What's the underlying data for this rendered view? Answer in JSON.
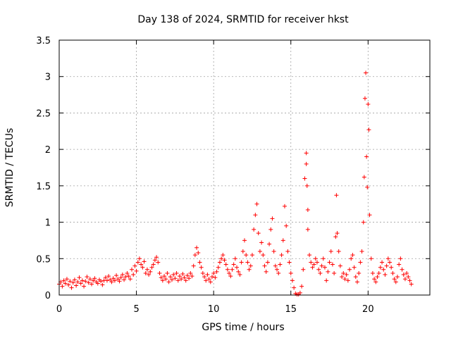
{
  "chart_data": {
    "type": "scatter",
    "title": "Day 138 of 2024, SRMTID for receiver hkst",
    "xlabel": "GPS time / hours",
    "ylabel": "SRMTID / TECUs",
    "xlim": [
      0,
      24
    ],
    "ylim": [
      0,
      3.5
    ],
    "xticks": [
      0,
      5,
      10,
      15,
      20
    ],
    "yticks": [
      0,
      0.5,
      1,
      1.5,
      2,
      2.5,
      3,
      3.5
    ],
    "xtick_labels": [
      "0",
      "5",
      "10",
      "15",
      "20"
    ],
    "ytick_labels": [
      "0",
      "0.5",
      "1",
      "1.5",
      "2",
      "2.5",
      "3",
      "3.5"
    ],
    "grid": true,
    "marker": "plus",
    "color": "#ff0000",
    "series": [
      {
        "name": "SRMTID",
        "points": [
          [
            0.0,
            0.15
          ],
          [
            0.1,
            0.18
          ],
          [
            0.2,
            0.12
          ],
          [
            0.3,
            0.2
          ],
          [
            0.4,
            0.16
          ],
          [
            0.5,
            0.22
          ],
          [
            0.6,
            0.14
          ],
          [
            0.7,
            0.19
          ],
          [
            0.8,
            0.1
          ],
          [
            0.9,
            0.17
          ],
          [
            1.0,
            0.21
          ],
          [
            1.1,
            0.13
          ],
          [
            1.2,
            0.18
          ],
          [
            1.3,
            0.24
          ],
          [
            1.4,
            0.16
          ],
          [
            1.5,
            0.2
          ],
          [
            1.6,
            0.12
          ],
          [
            1.7,
            0.19
          ],
          [
            1.8,
            0.25
          ],
          [
            1.9,
            0.17
          ],
          [
            2.0,
            0.22
          ],
          [
            2.1,
            0.15
          ],
          [
            2.2,
            0.2
          ],
          [
            2.3,
            0.23
          ],
          [
            2.4,
            0.18
          ],
          [
            2.5,
            0.16
          ],
          [
            2.6,
            0.21
          ],
          [
            2.7,
            0.19
          ],
          [
            2.8,
            0.14
          ],
          [
            2.9,
            0.2
          ],
          [
            3.0,
            0.24
          ],
          [
            3.1,
            0.2
          ],
          [
            3.2,
            0.26
          ],
          [
            3.3,
            0.21
          ],
          [
            3.4,
            0.18
          ],
          [
            3.5,
            0.23
          ],
          [
            3.6,
            0.2
          ],
          [
            3.7,
            0.27
          ],
          [
            3.8,
            0.22
          ],
          [
            3.9,
            0.19
          ],
          [
            4.0,
            0.24
          ],
          [
            4.1,
            0.28
          ],
          [
            4.2,
            0.21
          ],
          [
            4.3,
            0.25
          ],
          [
            4.4,
            0.3
          ],
          [
            4.5,
            0.26
          ],
          [
            4.6,
            0.22
          ],
          [
            4.7,
            0.35
          ],
          [
            4.8,
            0.28
          ],
          [
            4.9,
            0.4
          ],
          [
            5.0,
            0.33
          ],
          [
            5.1,
            0.45
          ],
          [
            5.2,
            0.5
          ],
          [
            5.3,
            0.42
          ],
          [
            5.4,
            0.38
          ],
          [
            5.5,
            0.46
          ],
          [
            5.6,
            0.3
          ],
          [
            5.7,
            0.35
          ],
          [
            5.8,
            0.28
          ],
          [
            5.9,
            0.32
          ],
          [
            6.0,
            0.38
          ],
          [
            6.1,
            0.42
          ],
          [
            6.2,
            0.48
          ],
          [
            6.3,
            0.52
          ],
          [
            6.4,
            0.45
          ],
          [
            6.5,
            0.3
          ],
          [
            6.6,
            0.24
          ],
          [
            6.7,
            0.2
          ],
          [
            6.8,
            0.26
          ],
          [
            6.9,
            0.22
          ],
          [
            7.0,
            0.3
          ],
          [
            7.1,
            0.18
          ],
          [
            7.2,
            0.25
          ],
          [
            7.3,
            0.21
          ],
          [
            7.4,
            0.28
          ],
          [
            7.5,
            0.23
          ],
          [
            7.6,
            0.3
          ],
          [
            7.7,
            0.2
          ],
          [
            7.8,
            0.26
          ],
          [
            7.9,
            0.22
          ],
          [
            8.0,
            0.29
          ],
          [
            8.1,
            0.24
          ],
          [
            8.2,
            0.2
          ],
          [
            8.3,
            0.27
          ],
          [
            8.4,
            0.23
          ],
          [
            8.5,
            0.3
          ],
          [
            8.6,
            0.26
          ],
          [
            8.7,
            0.4
          ],
          [
            8.8,
            0.55
          ],
          [
            8.9,
            0.65
          ],
          [
            9.0,
            0.58
          ],
          [
            9.1,
            0.45
          ],
          [
            9.2,
            0.38
          ],
          [
            9.3,
            0.3
          ],
          [
            9.4,
            0.25
          ],
          [
            9.5,
            0.2
          ],
          [
            9.6,
            0.28
          ],
          [
            9.7,
            0.22
          ],
          [
            9.8,
            0.18
          ],
          [
            9.9,
            0.25
          ],
          [
            10.0,
            0.3
          ],
          [
            10.1,
            0.24
          ],
          [
            10.2,
            0.32
          ],
          [
            10.3,
            0.38
          ],
          [
            10.4,
            0.45
          ],
          [
            10.5,
            0.5
          ],
          [
            10.6,
            0.55
          ],
          [
            10.7,
            0.48
          ],
          [
            10.8,
            0.42
          ],
          [
            10.9,
            0.35
          ],
          [
            11.0,
            0.3
          ],
          [
            11.1,
            0.26
          ],
          [
            11.2,
            0.35
          ],
          [
            11.3,
            0.42
          ],
          [
            11.4,
            0.5
          ],
          [
            11.5,
            0.38
          ],
          [
            11.6,
            0.32
          ],
          [
            11.7,
            0.28
          ],
          [
            11.8,
            0.45
          ],
          [
            11.9,
            0.6
          ],
          [
            12.0,
            0.75
          ],
          [
            12.1,
            0.55
          ],
          [
            12.2,
            0.45
          ],
          [
            12.3,
            0.35
          ],
          [
            12.4,
            0.4
          ],
          [
            12.5,
            0.55
          ],
          [
            12.6,
            0.9
          ],
          [
            12.7,
            1.1
          ],
          [
            12.8,
            1.25
          ],
          [
            12.9,
            0.85
          ],
          [
            13.0,
            0.6
          ],
          [
            13.1,
            0.72
          ],
          [
            13.2,
            0.55
          ],
          [
            13.3,
            0.4
          ],
          [
            13.4,
            0.32
          ],
          [
            13.5,
            0.45
          ],
          [
            13.6,
            0.7
          ],
          [
            13.7,
            0.9
          ],
          [
            13.8,
            1.05
          ],
          [
            13.9,
            0.6
          ],
          [
            14.0,
            0.4
          ],
          [
            14.1,
            0.35
          ],
          [
            14.2,
            0.3
          ],
          [
            14.3,
            0.42
          ],
          [
            14.4,
            0.55
          ],
          [
            14.5,
            0.75
          ],
          [
            14.6,
            1.22
          ],
          [
            14.7,
            0.95
          ],
          [
            14.8,
            0.6
          ],
          [
            14.9,
            0.45
          ],
          [
            15.0,
            0.3
          ],
          [
            15.1,
            0.2
          ],
          [
            15.2,
            0.1
          ],
          [
            15.3,
            0.02
          ],
          [
            15.4,
            0.01
          ],
          [
            15.5,
            0.01
          ],
          [
            15.6,
            0.03
          ],
          [
            15.7,
            0.12
          ],
          [
            15.8,
            0.35
          ],
          [
            15.9,
            1.6
          ],
          [
            16.0,
            1.95
          ],
          [
            16.0,
            1.8
          ],
          [
            16.05,
            1.5
          ],
          [
            16.1,
            1.17
          ],
          [
            16.1,
            0.9
          ],
          [
            16.2,
            0.55
          ],
          [
            16.3,
            0.45
          ],
          [
            16.4,
            0.38
          ],
          [
            16.5,
            0.42
          ],
          [
            16.6,
            0.5
          ],
          [
            16.7,
            0.45
          ],
          [
            16.8,
            0.35
          ],
          [
            16.9,
            0.3
          ],
          [
            17.0,
            0.4
          ],
          [
            17.1,
            0.5
          ],
          [
            17.2,
            0.38
          ],
          [
            17.3,
            0.2
          ],
          [
            17.4,
            0.32
          ],
          [
            17.5,
            0.45
          ],
          [
            17.6,
            0.6
          ],
          [
            17.7,
            0.42
          ],
          [
            17.8,
            0.3
          ],
          [
            17.9,
            0.8
          ],
          [
            17.95,
            1.37
          ],
          [
            18.0,
            0.85
          ],
          [
            18.1,
            0.6
          ],
          [
            18.2,
            0.4
          ],
          [
            18.3,
            0.25
          ],
          [
            18.4,
            0.3
          ],
          [
            18.5,
            0.22
          ],
          [
            18.6,
            0.28
          ],
          [
            18.7,
            0.2
          ],
          [
            18.8,
            0.35
          ],
          [
            18.9,
            0.5
          ],
          [
            19.0,
            0.55
          ],
          [
            19.1,
            0.38
          ],
          [
            19.2,
            0.25
          ],
          [
            19.3,
            0.18
          ],
          [
            19.4,
            0.3
          ],
          [
            19.5,
            0.45
          ],
          [
            19.6,
            0.6
          ],
          [
            19.7,
            1.0
          ],
          [
            19.75,
            1.62
          ],
          [
            19.8,
            2.7
          ],
          [
            19.85,
            3.05
          ],
          [
            19.9,
            1.9
          ],
          [
            19.95,
            1.48
          ],
          [
            20.0,
            2.62
          ],
          [
            20.05,
            2.27
          ],
          [
            20.1,
            1.1
          ],
          [
            20.2,
            0.5
          ],
          [
            20.3,
            0.3
          ],
          [
            20.4,
            0.22
          ],
          [
            20.5,
            0.18
          ],
          [
            20.6,
            0.25
          ],
          [
            20.7,
            0.3
          ],
          [
            20.8,
            0.38
          ],
          [
            20.9,
            0.45
          ],
          [
            21.0,
            0.35
          ],
          [
            21.1,
            0.28
          ],
          [
            21.2,
            0.4
          ],
          [
            21.3,
            0.5
          ],
          [
            21.4,
            0.45
          ],
          [
            21.5,
            0.38
          ],
          [
            21.6,
            0.3
          ],
          [
            21.7,
            0.22
          ],
          [
            21.8,
            0.18
          ],
          [
            21.9,
            0.25
          ],
          [
            22.0,
            0.42
          ],
          [
            22.1,
            0.5
          ],
          [
            22.2,
            0.35
          ],
          [
            22.3,
            0.28
          ],
          [
            22.4,
            0.22
          ],
          [
            22.5,
            0.3
          ],
          [
            22.6,
            0.25
          ],
          [
            22.7,
            0.2
          ],
          [
            22.8,
            0.15
          ]
        ]
      }
    ]
  }
}
